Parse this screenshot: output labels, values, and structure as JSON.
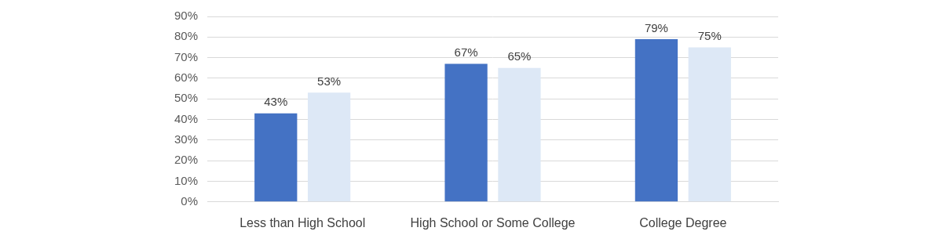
{
  "chart_data": {
    "type": "bar",
    "categories": [
      "Less than High School",
      "High School or Some College",
      "College Degree"
    ],
    "series": [
      {
        "color": "#4472c4",
        "values": [
          43,
          67,
          79
        ],
        "value_labels": [
          "43%",
          "67%",
          "79%"
        ]
      },
      {
        "color": "#dde8f6",
        "values": [
          53,
          65,
          75
        ],
        "value_labels": [
          "53%",
          "65%",
          "75%"
        ]
      }
    ],
    "ylim": [
      0,
      90
    ],
    "yticks": [
      {
        "value": 0,
        "label": "0%"
      },
      {
        "value": 10,
        "label": "10%"
      },
      {
        "value": 20,
        "label": "20%"
      },
      {
        "value": 30,
        "label": "30%"
      },
      {
        "value": 40,
        "label": "40%"
      },
      {
        "value": 50,
        "label": "50%"
      },
      {
        "value": 60,
        "label": "60%"
      },
      {
        "value": 70,
        "label": "70%"
      },
      {
        "value": 80,
        "label": "80%"
      },
      {
        "value": 90,
        "label": "90%"
      }
    ],
    "grid": true,
    "data_labels": true
  }
}
